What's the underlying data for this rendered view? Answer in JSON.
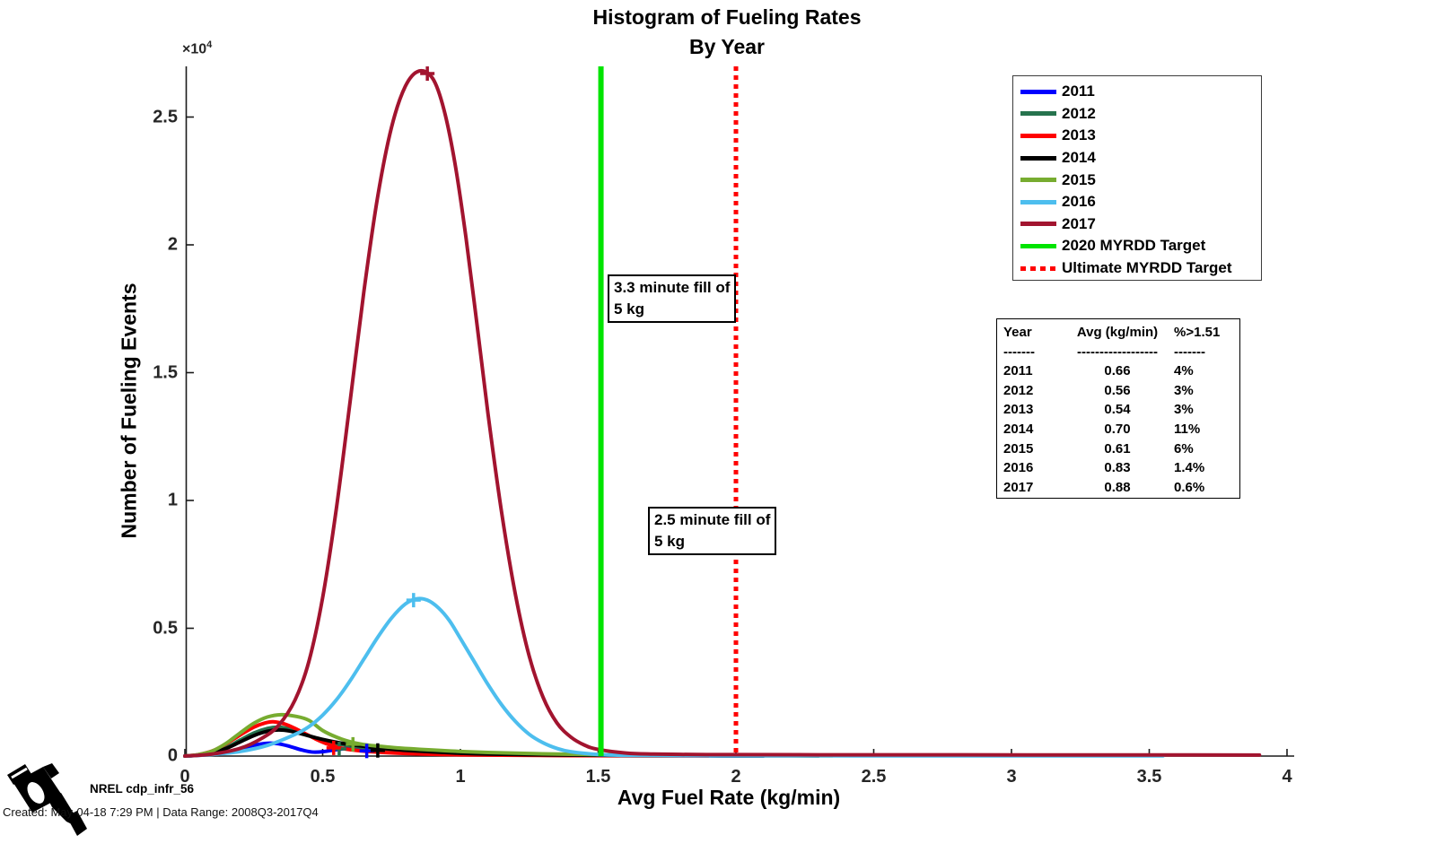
{
  "title": {
    "line1": "Histogram of Fueling Rates",
    "line2": "By Year"
  },
  "y_axis": {
    "label": "Number of Fueling Events",
    "multiplier_base": "×10",
    "multiplier_exp": "4",
    "ticks": [
      "0",
      "0.5",
      "1",
      "1.5",
      "2",
      "2.5"
    ]
  },
  "x_axis": {
    "label": "Avg Fuel Rate (kg/min)",
    "ticks": [
      "0",
      "0.5",
      "1",
      "1.5",
      "2",
      "2.5",
      "3",
      "3.5",
      "4"
    ]
  },
  "legend": {
    "entries": [
      {
        "label": "2011",
        "color": "#0000ff",
        "line_style": "solid"
      },
      {
        "label": "2012",
        "color": "#26734d",
        "line_style": "solid"
      },
      {
        "label": "2013",
        "color": "#ff0000",
        "line_style": "solid"
      },
      {
        "label": "2014",
        "color": "#000000",
        "line_style": "solid"
      },
      {
        "label": "2015",
        "color": "#77ac30",
        "line_style": "solid"
      },
      {
        "label": "2016",
        "color": "#4dbeee",
        "line_style": "solid"
      },
      {
        "label": "2017",
        "color": "#a2142f",
        "line_style": "solid"
      },
      {
        "label": "2020 MYRDD Target",
        "color": "#00e400",
        "line_style": "solid"
      },
      {
        "label": "Ultimate MYRDD Target",
        "color": "#ff0000",
        "line_style": "dotted"
      }
    ]
  },
  "annotations": [
    {
      "text_line1": "3.3 minute fill of",
      "text_line2": "5 kg"
    },
    {
      "text_line1": "2.5 minute fill of",
      "text_line2": "5 kg"
    }
  ],
  "stats_table": {
    "headers": [
      "Year",
      "Avg (kg/min)",
      "%>1.51"
    ],
    "separators": [
      "-------",
      "------------------",
      "-------"
    ],
    "rows": [
      [
        "2011",
        "0.66",
        "4%"
      ],
      [
        "2012",
        "0.56",
        "3%"
      ],
      [
        "2013",
        "0.54",
        "3%"
      ],
      [
        "2014",
        "0.70",
        "11%"
      ],
      [
        "2015",
        "0.61",
        "6%"
      ],
      [
        "2016",
        "0.83",
        "1.4%"
      ],
      [
        "2017",
        "0.88",
        "0.6%"
      ]
    ]
  },
  "footer": {
    "logo_icon": "fuel-nozzle-icon",
    "logo_label": "NREL cdp_infr_56",
    "created_line": "Created: May-04-18  7:29 PM | Data Range: 2008Q3-2017Q4"
  },
  "chart_data": {
    "type": "line",
    "title": "Histogram of Fueling Rates By Year",
    "xlabel": "Avg Fuel Rate (kg/min)",
    "ylabel": "Number of Fueling Events",
    "xlim": [
      0,
      4.02
    ],
    "ylim": [
      0,
      27000
    ],
    "grid": false,
    "legend_position": "upper right",
    "y_units": "events (axis shown as ×10^4)",
    "vlines": [
      {
        "x": 1.51,
        "label": "2020 MYRDD Target",
        "color": "#00e400",
        "style": "solid"
      },
      {
        "x": 2.0,
        "label": "Ultimate MYRDD Target",
        "color": "#ff0000",
        "style": "dotted"
      }
    ],
    "series": [
      {
        "name": "2011",
        "color": "#0000ff",
        "avg_kg_min": 0.66,
        "pct_above_1_51": "4%",
        "avg_marker": {
          "x": 0.66,
          "y": 200
        },
        "points": [
          [
            0,
            0
          ],
          [
            0.05,
            30
          ],
          [
            0.1,
            80
          ],
          [
            0.15,
            160
          ],
          [
            0.2,
            280
          ],
          [
            0.25,
            420
          ],
          [
            0.3,
            500
          ],
          [
            0.34,
            480
          ],
          [
            0.38,
            380
          ],
          [
            0.42,
            250
          ],
          [
            0.46,
            160
          ],
          [
            0.5,
            170
          ],
          [
            0.55,
            250
          ],
          [
            0.6,
            320
          ],
          [
            0.64,
            330
          ],
          [
            0.68,
            290
          ],
          [
            0.73,
            230
          ],
          [
            0.8,
            160
          ],
          [
            0.9,
            100
          ],
          [
            1.0,
            70
          ],
          [
            1.15,
            45
          ],
          [
            1.35,
            30
          ],
          [
            1.6,
            20
          ],
          [
            1.85,
            12
          ],
          [
            2.1,
            8
          ]
        ]
      },
      {
        "name": "2012",
        "color": "#26734d",
        "avg_kg_min": 0.56,
        "pct_above_1_51": "3%",
        "avg_marker": {
          "x": 0.56,
          "y": 280
        },
        "points": [
          [
            0,
            0
          ],
          [
            0.05,
            40
          ],
          [
            0.1,
            130
          ],
          [
            0.15,
            330
          ],
          [
            0.2,
            620
          ],
          [
            0.25,
            900
          ],
          [
            0.3,
            1080
          ],
          [
            0.34,
            1130
          ],
          [
            0.38,
            1060
          ],
          [
            0.42,
            920
          ],
          [
            0.46,
            760
          ],
          [
            0.5,
            620
          ],
          [
            0.55,
            490
          ],
          [
            0.6,
            400
          ],
          [
            0.65,
            330
          ],
          [
            0.7,
            270
          ],
          [
            0.78,
            200
          ],
          [
            0.86,
            150
          ],
          [
            0.95,
            105
          ],
          [
            1.05,
            70
          ],
          [
            1.2,
            45
          ],
          [
            1.4,
            28
          ],
          [
            1.6,
            18
          ],
          [
            1.85,
            12
          ],
          [
            2.1,
            8
          ]
        ]
      },
      {
        "name": "2013",
        "color": "#ff0000",
        "avg_kg_min": 0.54,
        "pct_above_1_51": "3%",
        "avg_marker": {
          "x": 0.54,
          "y": 320
        },
        "points": [
          [
            0,
            0
          ],
          [
            0.05,
            60
          ],
          [
            0.1,
            200
          ],
          [
            0.15,
            480
          ],
          [
            0.2,
            820
          ],
          [
            0.25,
            1130
          ],
          [
            0.29,
            1290
          ],
          [
            0.32,
            1340
          ],
          [
            0.36,
            1260
          ],
          [
            0.4,
            1080
          ],
          [
            0.44,
            860
          ],
          [
            0.48,
            640
          ],
          [
            0.52,
            460
          ],
          [
            0.56,
            330
          ],
          [
            0.6,
            250
          ],
          [
            0.66,
            185
          ],
          [
            0.72,
            140
          ],
          [
            0.8,
            100
          ],
          [
            0.9,
            70
          ],
          [
            1.0,
            50
          ],
          [
            1.15,
            33
          ],
          [
            1.35,
            20
          ],
          [
            1.6,
            12
          ],
          [
            1.9,
            7
          ]
        ]
      },
      {
        "name": "2014",
        "color": "#000000",
        "avg_kg_min": 0.7,
        "pct_above_1_51": "11%",
        "avg_marker": {
          "x": 0.7,
          "y": 220
        },
        "points": [
          [
            0,
            0
          ],
          [
            0.05,
            40
          ],
          [
            0.1,
            130
          ],
          [
            0.15,
            300
          ],
          [
            0.2,
            550
          ],
          [
            0.25,
            800
          ],
          [
            0.3,
            970
          ],
          [
            0.34,
            1020
          ],
          [
            0.38,
            980
          ],
          [
            0.42,
            880
          ],
          [
            0.46,
            760
          ],
          [
            0.5,
            650
          ],
          [
            0.55,
            540
          ],
          [
            0.6,
            450
          ],
          [
            0.65,
            380
          ],
          [
            0.7,
            320
          ],
          [
            0.76,
            260
          ],
          [
            0.82,
            210
          ],
          [
            0.9,
            160
          ],
          [
            1.0,
            110
          ],
          [
            1.1,
            78
          ],
          [
            1.25,
            52
          ],
          [
            1.45,
            34
          ],
          [
            1.7,
            22
          ],
          [
            2.0,
            15
          ],
          [
            2.3,
            10
          ]
        ]
      },
      {
        "name": "2015",
        "color": "#77ac30",
        "avg_kg_min": 0.61,
        "pct_above_1_51": "6%",
        "avg_marker": {
          "x": 0.61,
          "y": 460
        },
        "points": [
          [
            0,
            0
          ],
          [
            0.05,
            60
          ],
          [
            0.1,
            200
          ],
          [
            0.15,
            500
          ],
          [
            0.2,
            900
          ],
          [
            0.25,
            1280
          ],
          [
            0.3,
            1530
          ],
          [
            0.35,
            1620
          ],
          [
            0.4,
            1560
          ],
          [
            0.45,
            1400
          ],
          [
            0.5,
            1000
          ],
          [
            0.55,
            740
          ],
          [
            0.6,
            560
          ],
          [
            0.65,
            450
          ],
          [
            0.7,
            390
          ],
          [
            0.76,
            330
          ],
          [
            0.83,
            280
          ],
          [
            0.9,
            235
          ],
          [
            1.0,
            180
          ],
          [
            1.1,
            140
          ],
          [
            1.25,
            100
          ],
          [
            1.4,
            70
          ],
          [
            1.6,
            45
          ],
          [
            1.85,
            28
          ],
          [
            2.1,
            18
          ],
          [
            2.35,
            12
          ]
        ]
      },
      {
        "name": "2016",
        "color": "#4dbeee",
        "avg_kg_min": 0.83,
        "pct_above_1_51": "1.4%",
        "avg_marker": {
          "x": 0.83,
          "y": 6100
        },
        "points": [
          [
            0,
            0
          ],
          [
            0.1,
            60
          ],
          [
            0.2,
            180
          ],
          [
            0.3,
            420
          ],
          [
            0.4,
            850
          ],
          [
            0.45,
            1150
          ],
          [
            0.5,
            1600
          ],
          [
            0.55,
            2200
          ],
          [
            0.6,
            2950
          ],
          [
            0.65,
            3800
          ],
          [
            0.7,
            4650
          ],
          [
            0.75,
            5400
          ],
          [
            0.8,
            5950
          ],
          [
            0.84,
            6150
          ],
          [
            0.88,
            6100
          ],
          [
            0.92,
            5800
          ],
          [
            0.96,
            5300
          ],
          [
            1.0,
            4600
          ],
          [
            1.05,
            3700
          ],
          [
            1.1,
            2800
          ],
          [
            1.15,
            2000
          ],
          [
            1.2,
            1350
          ],
          [
            1.25,
            850
          ],
          [
            1.3,
            520
          ],
          [
            1.35,
            300
          ],
          [
            1.4,
            170
          ],
          [
            1.5,
            60
          ],
          [
            1.6,
            30
          ],
          [
            1.8,
            18
          ],
          [
            2.1,
            12
          ],
          [
            2.6,
            10
          ],
          [
            3.1,
            10
          ],
          [
            3.55,
            8
          ]
        ]
      },
      {
        "name": "2017",
        "color": "#a2142f",
        "avg_kg_min": 0.88,
        "pct_above_1_51": "0.6%",
        "avg_marker": {
          "x": 0.88,
          "y": 26700
        },
        "points": [
          [
            0,
            0
          ],
          [
            0.1,
            80
          ],
          [
            0.2,
            300
          ],
          [
            0.28,
            700
          ],
          [
            0.34,
            1200
          ],
          [
            0.4,
            2200
          ],
          [
            0.45,
            3700
          ],
          [
            0.5,
            6200
          ],
          [
            0.55,
            9700
          ],
          [
            0.6,
            13900
          ],
          [
            0.65,
            18200
          ],
          [
            0.7,
            21900
          ],
          [
            0.75,
            24600
          ],
          [
            0.8,
            26200
          ],
          [
            0.85,
            26800
          ],
          [
            0.9,
            26500
          ],
          [
            0.94,
            25300
          ],
          [
            0.98,
            23200
          ],
          [
            1.02,
            20300
          ],
          [
            1.06,
            16900
          ],
          [
            1.1,
            13400
          ],
          [
            1.15,
            9500
          ],
          [
            1.2,
            6300
          ],
          [
            1.25,
            3900
          ],
          [
            1.3,
            2300
          ],
          [
            1.35,
            1300
          ],
          [
            1.4,
            750
          ],
          [
            1.45,
            430
          ],
          [
            1.5,
            260
          ],
          [
            1.6,
            120
          ],
          [
            1.7,
            80
          ],
          [
            1.85,
            60
          ],
          [
            2.0,
            55
          ],
          [
            2.3,
            50
          ],
          [
            2.7,
            50
          ],
          [
            3.1,
            45
          ],
          [
            3.5,
            45
          ],
          [
            3.9,
            40
          ]
        ]
      }
    ]
  }
}
